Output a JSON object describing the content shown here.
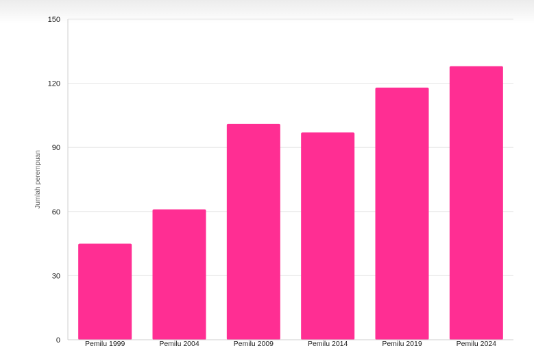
{
  "chart_data": {
    "type": "bar",
    "title": "",
    "xlabel": "",
    "ylabel": "Jumlah perempuan",
    "categories": [
      "Pemilu 1999",
      "Pemilu 2004",
      "Pemilu 2009",
      "Pemilu 2014",
      "Pemilu 2019",
      "Pemilu 2024"
    ],
    "values": [
      45,
      61,
      101,
      97,
      118,
      128
    ],
    "ylim": [
      0,
      150
    ],
    "yticks": [
      0,
      30,
      60,
      90,
      120,
      150
    ],
    "grid": true,
    "legend": "none",
    "colors": {
      "bar": "#ff2e93",
      "grid": "#e6e6e6",
      "axis": "#cfcfcf",
      "text": "#222222"
    }
  }
}
